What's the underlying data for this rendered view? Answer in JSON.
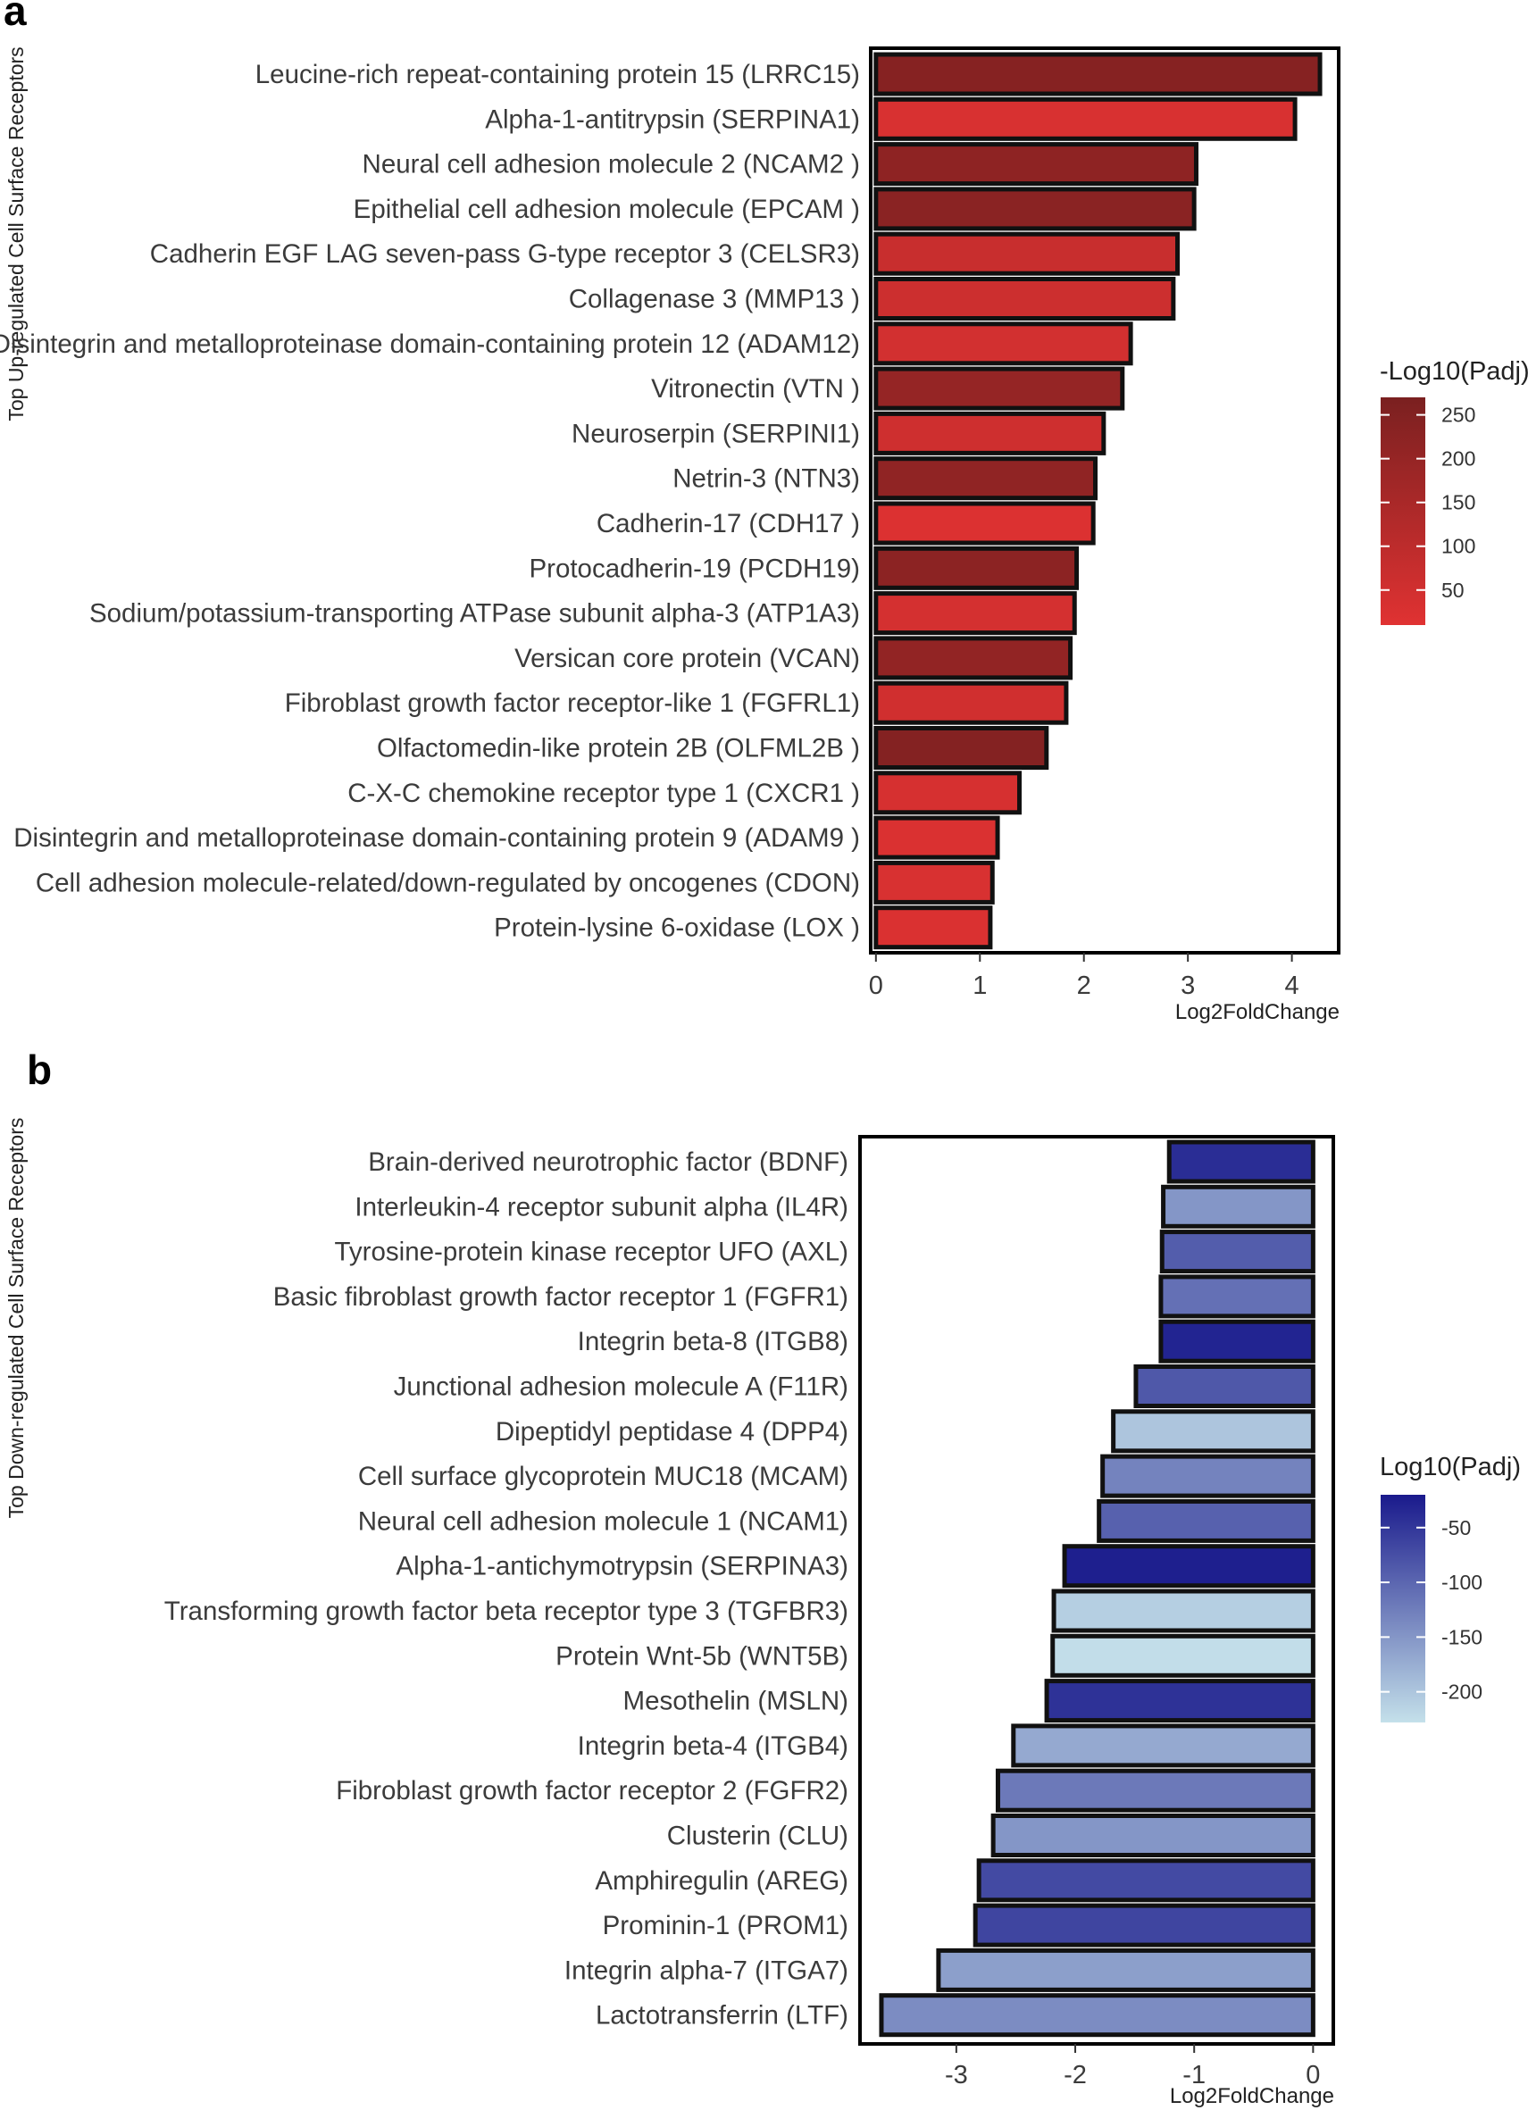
{
  "chart_data": [
    {
      "panel": "a",
      "type": "bar",
      "orientation": "horizontal",
      "ylabel": "Top Up-regulated Cell Surface Receptors",
      "xlabel": "Log2FoldChange",
      "xlim": [
        -0.05,
        4.45
      ],
      "xticks": [
        0,
        1,
        2,
        3,
        4
      ],
      "tick_labels": [
        "0",
        "1",
        "2",
        "3",
        "4"
      ],
      "categories": [
        "Leucine-rich repeat-containing protein 15 (LRRC15)",
        "Alpha-1-antitrypsin (SERPINA1)",
        "Neural cell adhesion molecule 2 (NCAM2 )",
        "Epithelial cell adhesion molecule (EPCAM )",
        "Cadherin EGF LAG seven-pass G-type receptor 3 (CELSR3)",
        "Collagenase 3 (MMP13 )",
        "Disintegrin and metalloproteinase domain-containing protein 12 (ADAM12)",
        "Vitronectin (VTN )",
        "Neuroserpin (SERPINI1)",
        "Netrin-3 (NTN3)",
        "Cadherin-17 (CDH17 )",
        "Protocadherin-19 (PCDH19)",
        "Sodium/potassium-transporting ATPase subunit alpha-3 (ATP1A3)",
        "Versican core protein (VCAN)",
        "Fibroblast growth factor receptor-like 1 (FGFRL1)",
        "Olfactomedin-like protein 2B (OLFML2B )",
        "C-X-C chemokine receptor type 1 (CXCR1 )",
        "Disintegrin and metalloproteinase domain-containing protein 9 (ADAM9 )",
        "Cell adhesion molecule-related/down-regulated by oncogenes (CDON)",
        "Protein-lysine 6-oxidase (LOX )"
      ],
      "values": [
        4.27,
        4.03,
        3.08,
        3.06,
        2.9,
        2.86,
        2.45,
        2.37,
        2.19,
        2.11,
        2.09,
        1.93,
        1.91,
        1.87,
        1.83,
        1.64,
        1.38,
        1.17,
        1.12,
        1.1
      ],
      "color_values": [
        240,
        30,
        220,
        230,
        70,
        60,
        45,
        200,
        55,
        215,
        20,
        225,
        40,
        210,
        50,
        245,
        35,
        25,
        30,
        25
      ],
      "color_scale": {
        "title": "-Log10(Padj)",
        "range": [
          10,
          270
        ],
        "ticks": [
          250,
          200,
          150,
          100,
          50
        ],
        "tick_labels": [
          "250",
          "200",
          "150",
          "100",
          "50"
        ],
        "low_color": "#e03232",
        "high_color": "#7a2020"
      }
    },
    {
      "panel": "b",
      "type": "bar",
      "orientation": "horizontal",
      "ylabel": "Top Down-regulated Cell Surface Receptors",
      "xlabel": "Log2FoldChange",
      "xlim": [
        -3.81,
        0.17
      ],
      "xticks": [
        -3,
        -2,
        -1,
        0
      ],
      "tick_labels": [
        "-3",
        "-2",
        "-1",
        "0"
      ],
      "categories": [
        "Brain-derived neurotrophic factor (BDNF)",
        "Interleukin-4 receptor subunit alpha (IL4R)",
        "Tyrosine-protein kinase receptor UFO (AXL)",
        "Basic fibroblast growth factor receptor 1 (FGFR1)",
        "Integrin beta-8 (ITGB8)",
        "Junctional adhesion molecule A (F11R)",
        "Dipeptidyl peptidase 4 (DPP4)",
        "Cell surface glycoprotein MUC18 (MCAM)",
        "Neural cell adhesion molecule 1 (NCAM1)",
        "Alpha-1-antichymotrypsin (SERPINA3)",
        "Transforming growth factor beta receptor type 3 (TGFBR3)",
        "Protein Wnt-5b (WNT5B)",
        "Mesothelin (MSLN)",
        "Integrin beta-4 (ITGB4)",
        "Fibroblast growth factor receptor 2 (FGFR2)",
        "Clusterin (CLU)",
        "Amphiregulin (AREG)",
        "Prominin-1 (PROM1)",
        "Integrin alpha-7 (ITGA7)",
        "Lactotransferrin (LTF)"
      ],
      "values": [
        -1.21,
        -1.26,
        -1.27,
        -1.28,
        -1.28,
        -1.49,
        -1.68,
        -1.77,
        -1.8,
        -2.09,
        -2.18,
        -2.19,
        -2.24,
        -2.52,
        -2.65,
        -2.69,
        -2.81,
        -2.84,
        -3.15,
        -3.63
      ],
      "color_values": [
        -40,
        -150,
        -90,
        -110,
        -30,
        -85,
        -200,
        -130,
        -95,
        -25,
        -210,
        -225,
        -45,
        -170,
        -120,
        -150,
        -70,
        -65,
        -160,
        -140
      ],
      "color_scale": {
        "title": "Log10(Padj)",
        "range": [
          -228,
          -20
        ],
        "ticks": [
          -50,
          -100,
          -150,
          -200
        ],
        "tick_labels": [
          "-50",
          "-100",
          "-150",
          "-200"
        ],
        "low_color": "#c4e0ea",
        "high_color": "#1a1a8c"
      }
    }
  ]
}
